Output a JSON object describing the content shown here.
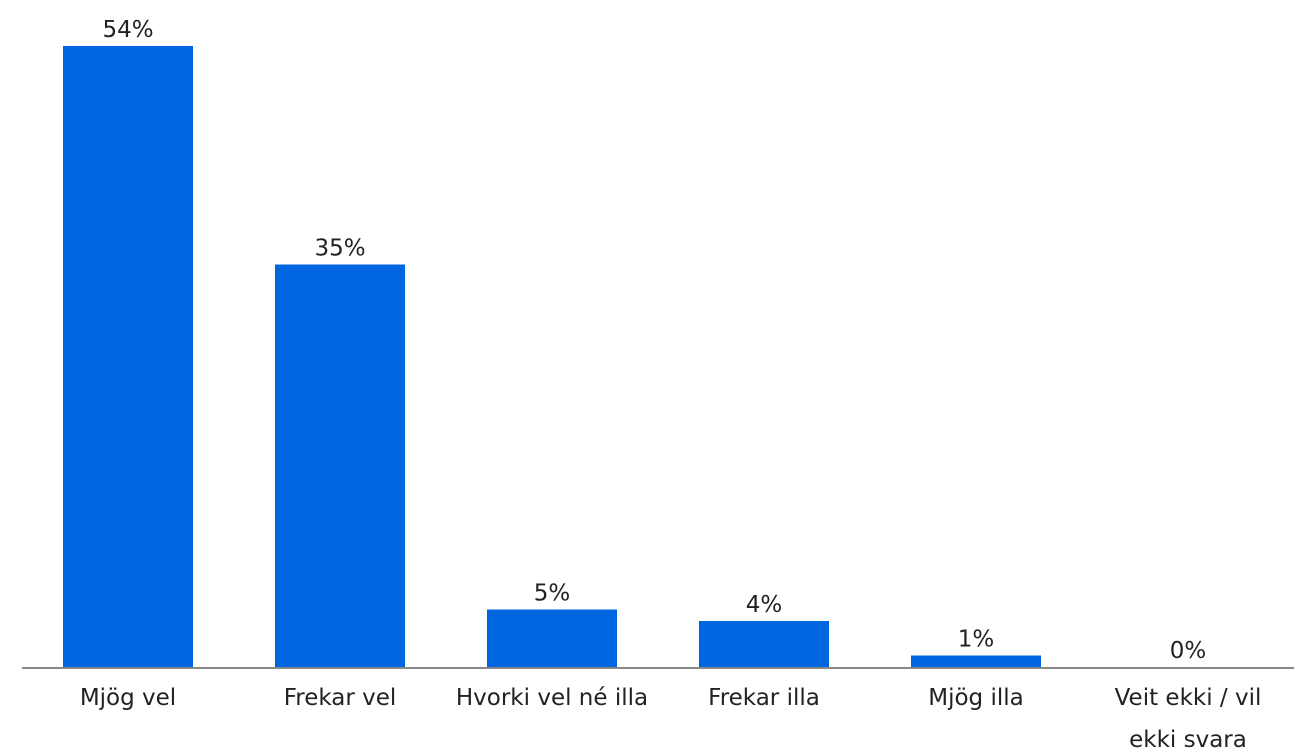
{
  "chart_data": {
    "type": "bar",
    "categories": [
      "Mjög vel",
      "Frekar vel",
      "Hvorki vel né illa",
      "Frekar illa",
      "Mjög illa",
      "Veit ekki / vil ekki svara"
    ],
    "values": [
      54,
      35,
      5,
      4,
      1,
      0
    ],
    "value_labels": [
      "54%",
      "35%",
      "5%",
      "4%",
      "1%",
      "0%"
    ],
    "color": "#0066e0"
  }
}
